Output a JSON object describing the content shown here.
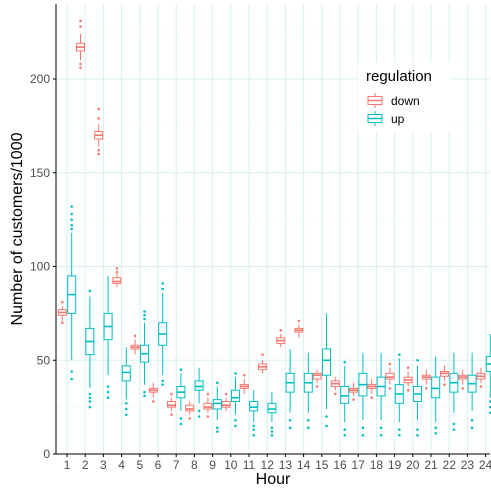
{
  "chart_data": {
    "type": "boxplot",
    "xlabel": "Hour",
    "ylabel": "Number of customers/1000",
    "categories": [
      "1",
      "2",
      "3",
      "4",
      "5",
      "6",
      "7",
      "8",
      "9",
      "10",
      "11",
      "12",
      "13",
      "14",
      "15",
      "16",
      "17",
      "18",
      "19",
      "20",
      "21",
      "22",
      "23",
      "24"
    ],
    "ylim": [
      0,
      240
    ],
    "yticks": [
      0,
      50,
      100,
      150,
      200
    ],
    "grid": true,
    "legend": {
      "title": "regulation",
      "position": "top-right",
      "entries": [
        "down",
        "up"
      ]
    },
    "colors": {
      "down": "#F8766D",
      "up": "#00BFC4"
    },
    "series": [
      {
        "name": "down",
        "boxes": [
          {
            "x": "1",
            "min": 71,
            "q1": 74,
            "median": 75.5,
            "q3": 77,
            "max": 79,
            "outliers": [
              70,
              81
            ]
          },
          {
            "x": "2",
            "min": 210,
            "q1": 215,
            "median": 217,
            "q3": 219,
            "max": 224,
            "outliers": [
              206,
              208,
              228,
              231
            ]
          },
          {
            "x": "3",
            "min": 164,
            "q1": 168,
            "median": 170,
            "q3": 172,
            "max": 176,
            "outliers": [
              160,
              162,
              179,
              184
            ]
          },
          {
            "x": "4",
            "min": 89,
            "q1": 91,
            "median": 92,
            "q3": 94,
            "max": 96,
            "outliers": [
              97,
              99
            ]
          },
          {
            "x": "5",
            "min": 53,
            "q1": 56,
            "median": 57,
            "q3": 58,
            "max": 61,
            "outliers": [
              63
            ]
          },
          {
            "x": "6",
            "min": 30,
            "q1": 33,
            "median": 34,
            "q3": 35,
            "max": 38,
            "outliers": [
              28
            ]
          },
          {
            "x": "7",
            "min": 23,
            "q1": 25,
            "median": 26,
            "q3": 28,
            "max": 30,
            "outliers": [
              21,
              32
            ]
          },
          {
            "x": "8",
            "min": 21,
            "q1": 23,
            "median": 24,
            "q3": 26,
            "max": 28,
            "outliers": [
              19
            ]
          },
          {
            "x": "9",
            "min": 22,
            "q1": 24,
            "median": 25,
            "q3": 27,
            "max": 30,
            "outliers": [
              20,
              32
            ]
          },
          {
            "x": "10",
            "min": 23,
            "q1": 25,
            "median": 26,
            "q3": 28,
            "max": 30,
            "outliers": [
              32
            ]
          },
          {
            "x": "11",
            "min": 32,
            "q1": 35,
            "median": 36,
            "q3": 37,
            "max": 40,
            "outliers": [
              42
            ]
          },
          {
            "x": "12",
            "min": 43,
            "q1": 45,
            "median": 46.5,
            "q3": 48,
            "max": 50,
            "outliers": [
              53
            ]
          },
          {
            "x": "13",
            "min": 57,
            "q1": 59,
            "median": 60.5,
            "q3": 62,
            "max": 64,
            "outliers": [
              66
            ]
          },
          {
            "x": "14",
            "min": 62,
            "q1": 65,
            "median": 66,
            "q3": 67,
            "max": 69,
            "outliers": [
              71
            ]
          },
          {
            "x": "15",
            "min": 38,
            "q1": 40,
            "median": 42,
            "q3": 43,
            "max": 45,
            "outliers": [
              36
            ]
          },
          {
            "x": "16",
            "min": 34,
            "q1": 36,
            "median": 37.5,
            "q3": 39,
            "max": 41,
            "outliers": [
              32
            ]
          },
          {
            "x": "17",
            "min": 31,
            "q1": 33,
            "median": 34,
            "q3": 35,
            "max": 38,
            "outliers": [
              29
            ]
          },
          {
            "x": "18",
            "min": 32,
            "q1": 35,
            "median": 36,
            "q3": 37,
            "max": 40,
            "outliers": [
              30
            ]
          },
          {
            "x": "19",
            "min": 37,
            "q1": 40,
            "median": 41,
            "q3": 43,
            "max": 46,
            "outliers": [
              35,
              48
            ]
          },
          {
            "x": "20",
            "min": 36,
            "q1": 38,
            "median": 39.5,
            "q3": 41,
            "max": 44,
            "outliers": [
              34,
              46
            ]
          },
          {
            "x": "21",
            "min": 37,
            "q1": 40,
            "median": 41,
            "q3": 42,
            "max": 45,
            "outliers": [
              35
            ]
          },
          {
            "x": "22",
            "min": 39,
            "q1": 41.5,
            "median": 43,
            "q3": 44,
            "max": 47,
            "outliers": [
              37
            ]
          },
          {
            "x": "23",
            "min": 37,
            "q1": 40,
            "median": 41,
            "q3": 42,
            "max": 45,
            "outliers": [
              35
            ]
          },
          {
            "x": "24",
            "min": 38,
            "q1": 40,
            "median": 41.5,
            "q3": 43,
            "max": 46,
            "outliers": [
              36
            ]
          }
        ]
      },
      {
        "name": "up",
        "boxes": [
          {
            "x": "1",
            "min": 50,
            "q1": 75,
            "median": 85,
            "q3": 95,
            "max": 118,
            "outliers": [
              40,
              44,
              120,
              122,
              125,
              128,
              132
            ]
          },
          {
            "x": "2",
            "min": 35,
            "q1": 53,
            "median": 60,
            "q3": 67,
            "max": 84,
            "outliers": [
              25,
              28,
              30,
              32,
              87
            ]
          },
          {
            "x": "3",
            "min": 42,
            "q1": 61,
            "median": 68,
            "q3": 75,
            "max": 95,
            "outliers": [
              30,
              33,
              36
            ]
          },
          {
            "x": "4",
            "min": 29,
            "q1": 39,
            "median": 43.5,
            "q3": 47,
            "max": 57,
            "outliers": [
              21,
              24,
              27
            ]
          },
          {
            "x": "5",
            "min": 37,
            "q1": 49,
            "median": 53.5,
            "q3": 58,
            "max": 70,
            "outliers": [
              31,
              33,
              72,
              74,
              76
            ]
          },
          {
            "x": "6",
            "min": 42,
            "q1": 58,
            "median": 64,
            "q3": 70,
            "max": 86,
            "outliers": [
              37,
              39,
              88,
              91
            ]
          },
          {
            "x": "7",
            "min": 23,
            "q1": 30,
            "median": 33,
            "q3": 36,
            "max": 43,
            "outliers": [
              16,
              19,
              45
            ]
          },
          {
            "x": "8",
            "min": 27,
            "q1": 34,
            "median": 36,
            "q3": 39,
            "max": 46,
            "outliers": [
              20,
              23
            ]
          },
          {
            "x": "9",
            "min": 18,
            "q1": 24,
            "median": 27,
            "q3": 29,
            "max": 36,
            "outliers": [
              12,
              14,
              38
            ]
          },
          {
            "x": "10",
            "min": 21,
            "q1": 28,
            "median": 30,
            "q3": 34,
            "max": 41,
            "outliers": [
              15,
              18,
              43
            ]
          },
          {
            "x": "11",
            "min": 17,
            "q1": 23,
            "median": 25,
            "q3": 28,
            "max": 34,
            "outliers": [
              10,
              13,
              15
            ]
          },
          {
            "x": "12",
            "min": 17,
            "q1": 22,
            "median": 24,
            "q3": 27,
            "max": 33,
            "outliers": [
              10,
              12,
              14
            ]
          },
          {
            "x": "13",
            "min": 22,
            "q1": 33,
            "median": 38,
            "q3": 43,
            "max": 56,
            "outliers": [
              14,
              18
            ]
          },
          {
            "x": "14",
            "min": 22,
            "q1": 33,
            "median": 38,
            "q3": 43,
            "max": 54,
            "outliers": [
              14,
              18
            ]
          },
          {
            "x": "15",
            "min": 24,
            "q1": 42,
            "median": 50,
            "q3": 56,
            "max": 75,
            "outliers": [
              15,
              20
            ]
          },
          {
            "x": "16",
            "min": 17,
            "q1": 27,
            "median": 31,
            "q3": 36,
            "max": 47,
            "outliers": [
              10,
              13,
              49
            ]
          },
          {
            "x": "17",
            "min": 18,
            "q1": 31,
            "median": 37,
            "q3": 43,
            "max": 54,
            "outliers": [
              10,
              14
            ]
          },
          {
            "x": "18",
            "min": 18,
            "q1": 31,
            "median": 36,
            "q3": 41,
            "max": 54,
            "outliers": [
              10,
              14
            ]
          },
          {
            "x": "19",
            "min": 17,
            "q1": 27,
            "median": 32,
            "q3": 37,
            "max": 51,
            "outliers": [
              10,
              13,
              53
            ]
          },
          {
            "x": "20",
            "min": 18,
            "q1": 28,
            "median": 32,
            "q3": 36,
            "max": 47,
            "outliers": [
              10,
              13,
              50
            ]
          },
          {
            "x": "21",
            "min": 17,
            "q1": 30,
            "median": 35,
            "q3": 41,
            "max": 52,
            "outliers": [
              11,
              14
            ]
          },
          {
            "x": "22",
            "min": 22,
            "q1": 33,
            "median": 38,
            "q3": 43,
            "max": 54,
            "outliers": [
              13,
              16
            ]
          },
          {
            "x": "23",
            "min": 23,
            "q1": 33,
            "median": 37.5,
            "q3": 42,
            "max": 54,
            "outliers": [
              14,
              18
            ]
          },
          {
            "x": "24",
            "min": 30,
            "q1": 44,
            "median": 48,
            "q3": 52,
            "max": 64,
            "outliers": [
              22,
              25,
              28
            ]
          }
        ]
      }
    ]
  }
}
